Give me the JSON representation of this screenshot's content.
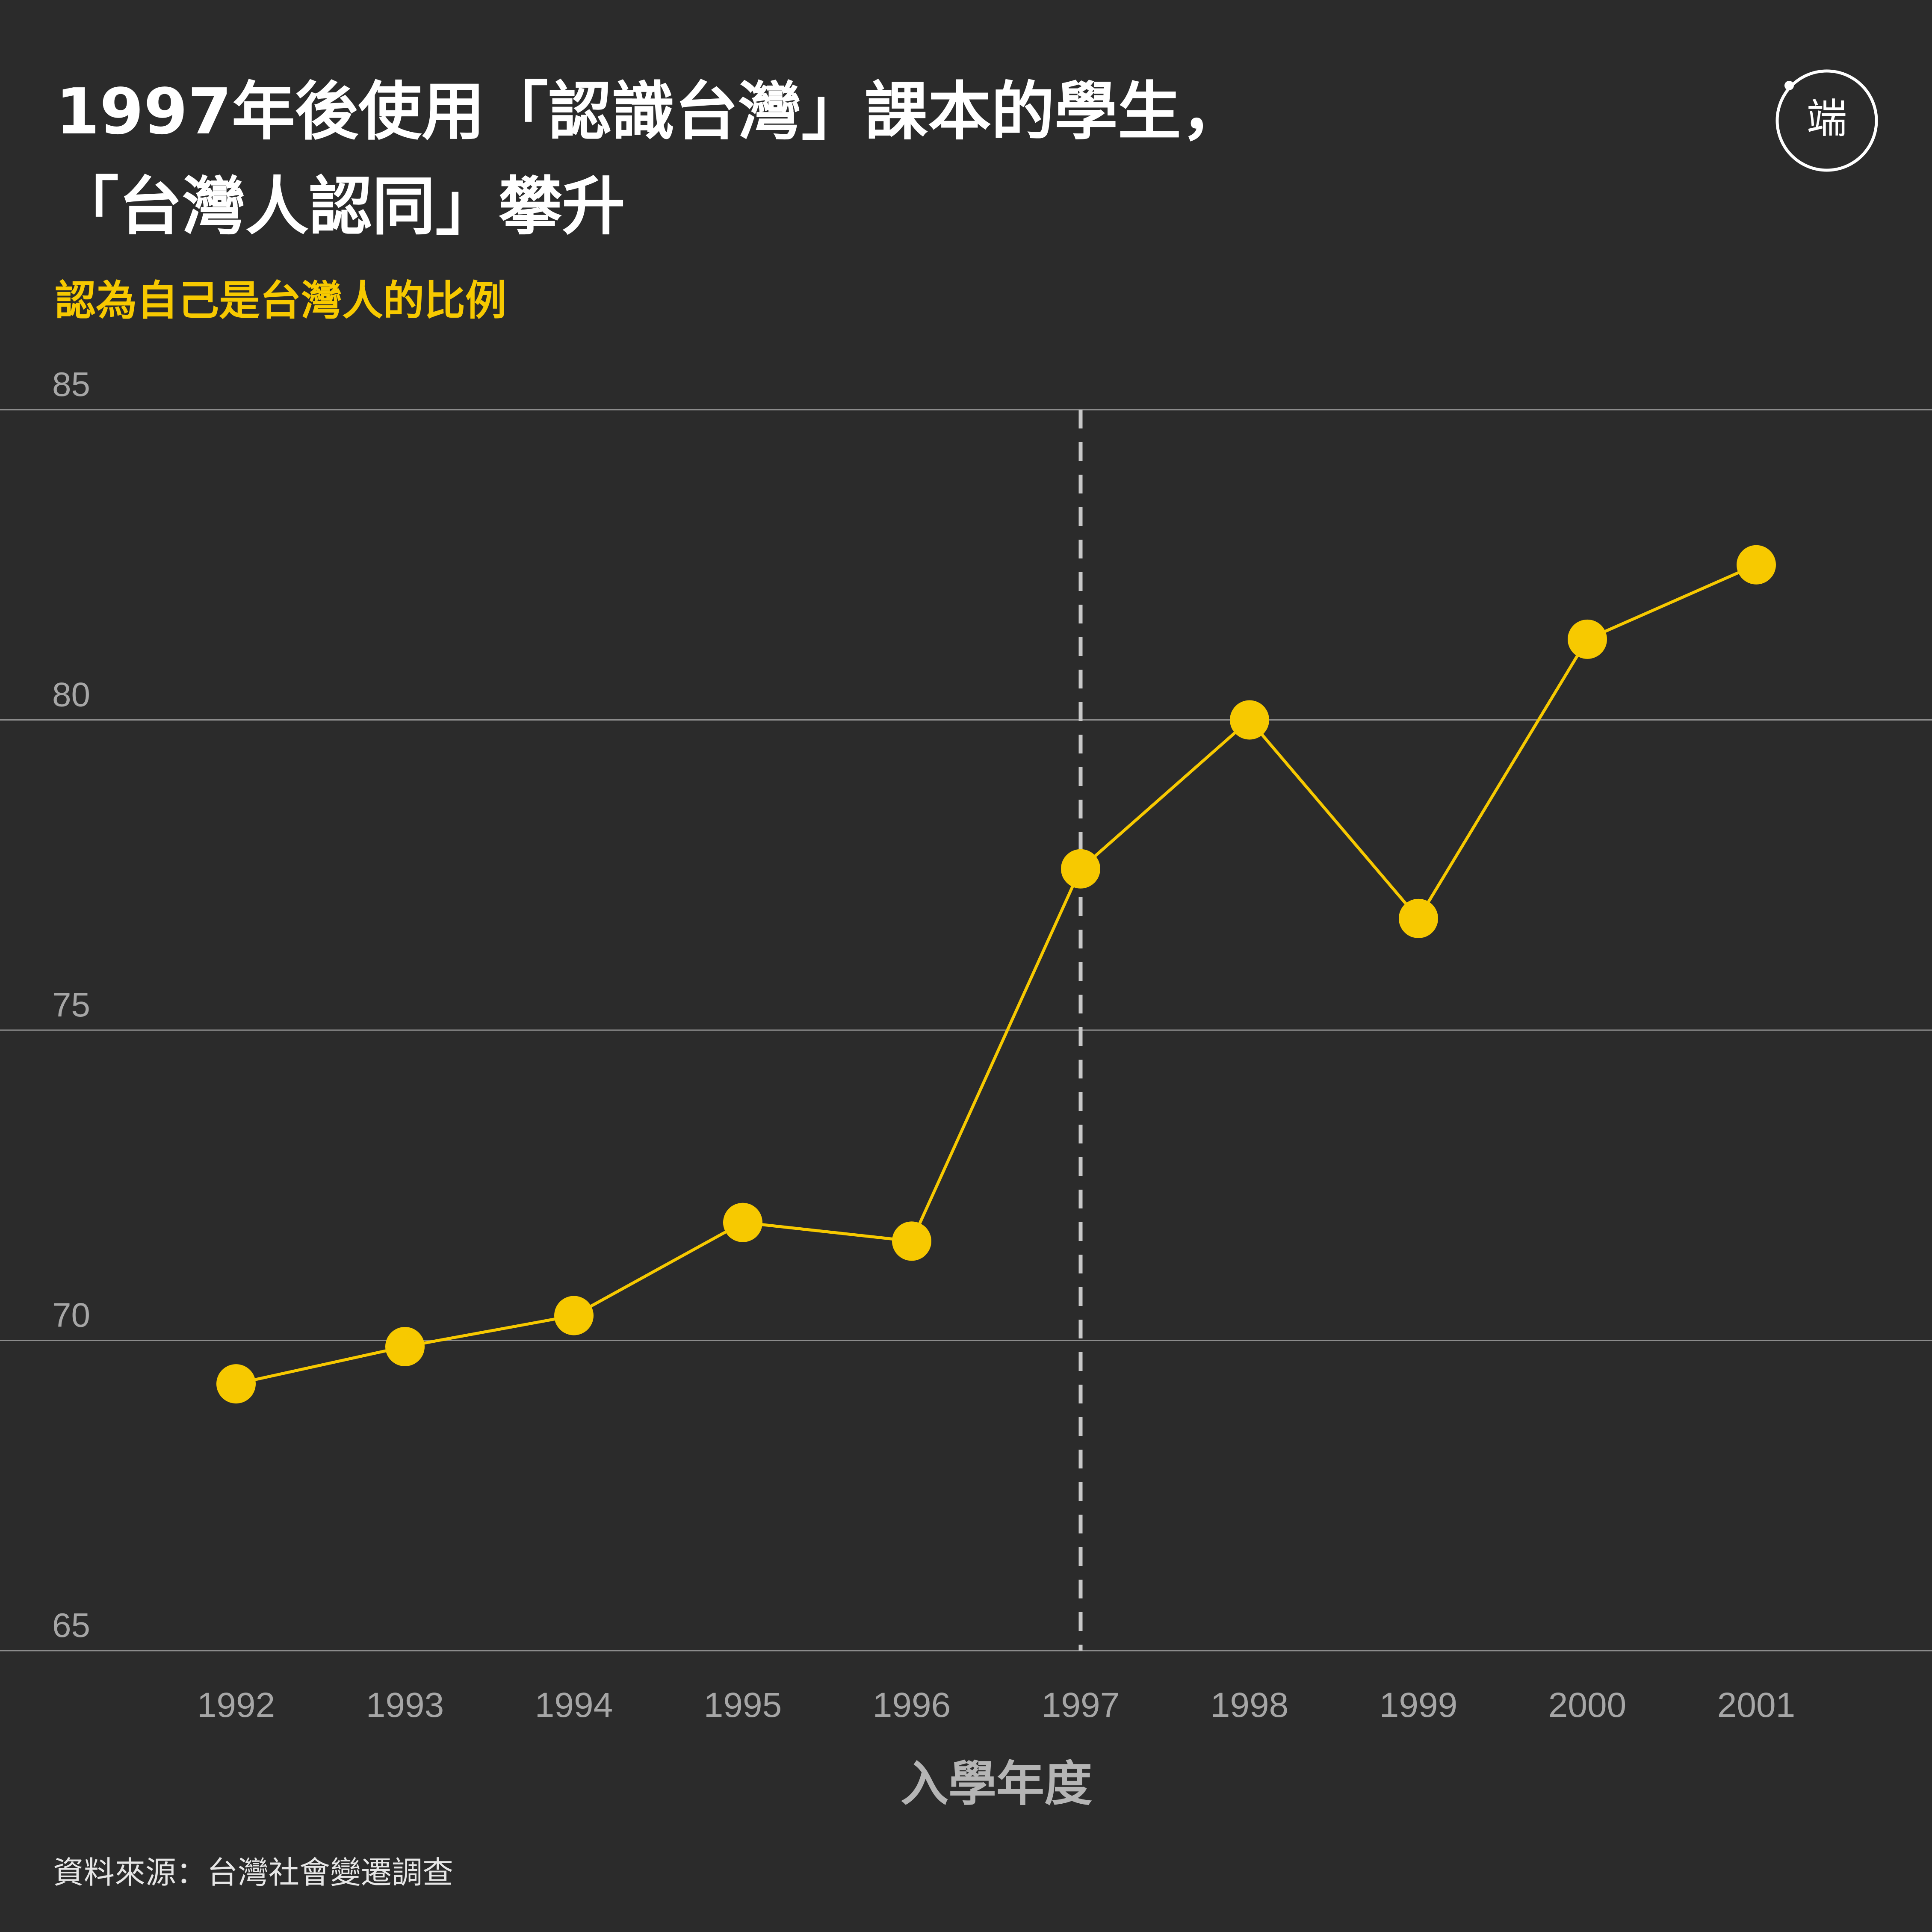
{
  "header": {
    "title_line1": "1997年後使用「認識台灣」課本的學生，",
    "title_line2": "「台灣人認同」攀升",
    "subtitle": "認為自己是台灣人的比例"
  },
  "footer": {
    "source": "資料來源：台灣社會變遷調查"
  },
  "logo": {
    "icon": "initium-media-logo-icon",
    "text": "端"
  },
  "colors": {
    "background": "#2b2b2b",
    "accent": "#f7c900",
    "gridline": "#8c8c8c",
    "marker_line": "#c8c8c8"
  },
  "chart_data": {
    "type": "line",
    "title": "",
    "xlabel": "入學年度",
    "ylabel": "",
    "x": [
      "1992",
      "1993",
      "1994",
      "1995",
      "1996",
      "1997",
      "1998",
      "1999",
      "2000",
      "2001"
    ],
    "ylim": [
      65,
      85
    ],
    "yticks": [
      "85",
      "80",
      "75",
      "70",
      "65"
    ],
    "grid": true,
    "series": [
      {
        "values": [
          69.3,
          69.9,
          70.4,
          71.9,
          71.6,
          77.6,
          80.0,
          76.8,
          81.3,
          82.5
        ]
      }
    ],
    "annotations": [
      {
        "type": "vertical-dashed-line",
        "x": "1997"
      }
    ]
  }
}
